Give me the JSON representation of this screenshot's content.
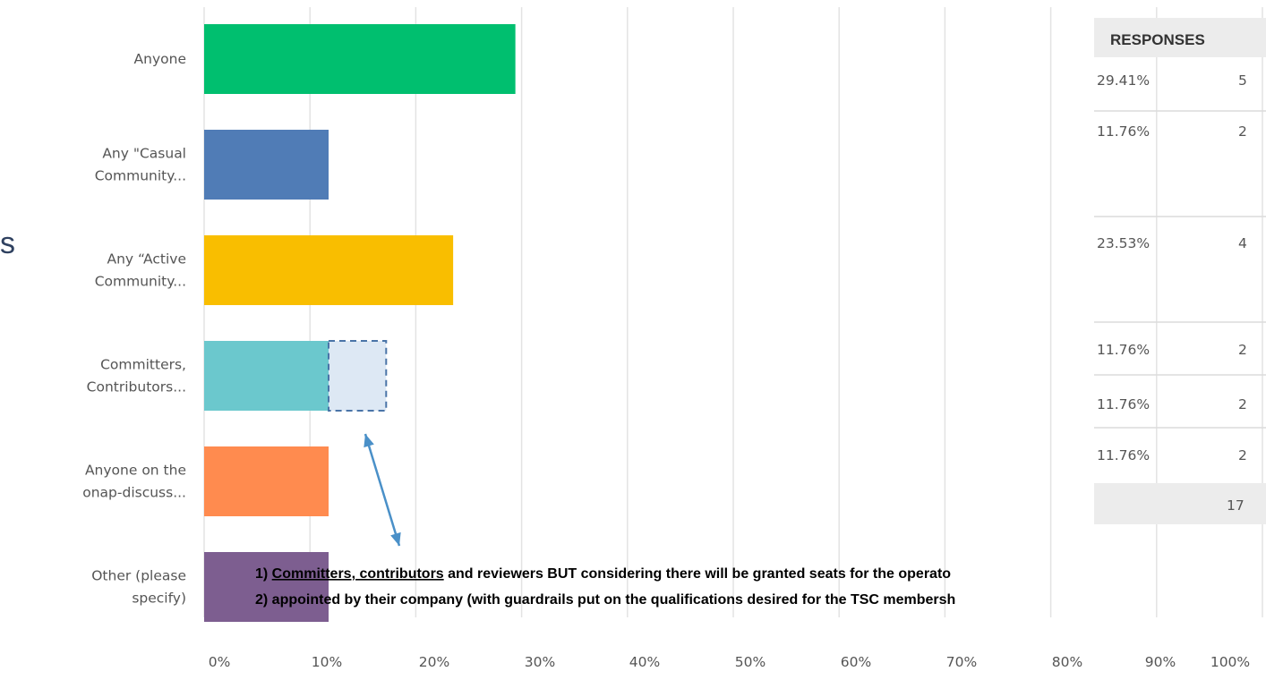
{
  "stray_letter": "s",
  "chart_data": {
    "type": "bar",
    "orientation": "horizontal",
    "categories": [
      [
        "Anyone"
      ],
      [
        "Any \"Casual",
        "Community..."
      ],
      [
        "Any “Active",
        "Community..."
      ],
      [
        "Committers,",
        "Contributors..."
      ],
      [
        "Anyone on the",
        "onap-discuss..."
      ],
      [
        "Other (please",
        "specify)"
      ]
    ],
    "values": [
      29.41,
      11.76,
      23.53,
      11.76,
      11.76,
      11.76
    ],
    "colors": [
      "#00bf6f",
      "#507cb6",
      "#f9be00",
      "#6bc8cd",
      "#ff8b4f",
      "#7d5e90"
    ],
    "xlim": [
      0,
      100
    ],
    "xticks": [
      "0%",
      "10%",
      "20%",
      "30%",
      "40%",
      "50%",
      "60%",
      "70%",
      "80%",
      "90%",
      "100%"
    ],
    "grid": true,
    "highlight": {
      "category_index": 3,
      "from": 11.76,
      "to": 17.2,
      "style": "dashed",
      "color": "#4a74a8",
      "fill": "#dde8f4"
    }
  },
  "responses_table": {
    "header": "RESPONSES",
    "rows": [
      {
        "percent": "29.41%",
        "count": "5"
      },
      {
        "percent": "11.76%",
        "count": "2"
      },
      {
        "percent": "23.53%",
        "count": "4"
      },
      {
        "percent": "11.76%",
        "count": "2"
      },
      {
        "percent": "11.76%",
        "count": "2"
      },
      {
        "percent": "11.76%",
        "count": "2"
      }
    ],
    "total": "17"
  },
  "annotation": {
    "line1": {
      "prefix": "1) ",
      "underlined": "Committers, contributors",
      "rest": " and reviewers BUT considering there will be granted seats for the operato"
    },
    "line2": "2) appointed by their company (with guardrails put on the qualifications desired for the TSC membersh",
    "arrow_color": "#4a90c8"
  }
}
